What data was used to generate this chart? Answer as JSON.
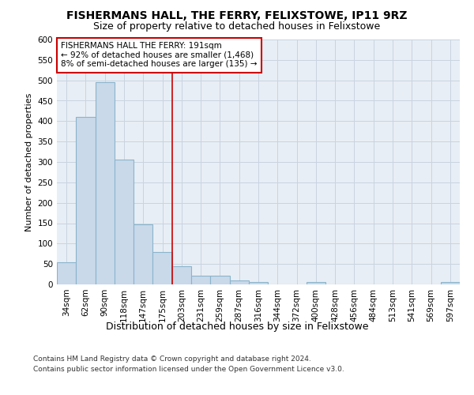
{
  "title1": "FISHERMANS HALL, THE FERRY, FELIXSTOWE, IP11 9RZ",
  "title2": "Size of property relative to detached houses in Felixstowe",
  "xlabel": "Distribution of detached houses by size in Felixstowe",
  "ylabel": "Number of detached properties",
  "categories": [
    "34sqm",
    "62sqm",
    "90sqm",
    "118sqm",
    "147sqm",
    "175sqm",
    "203sqm",
    "231sqm",
    "259sqm",
    "287sqm",
    "316sqm",
    "344sqm",
    "372sqm",
    "400sqm",
    "428sqm",
    "456sqm",
    "484sqm",
    "513sqm",
    "541sqm",
    "569sqm",
    "597sqm"
  ],
  "values": [
    55,
    410,
    495,
    305,
    148,
    80,
    45,
    22,
    22,
    10,
    5,
    0,
    0,
    5,
    0,
    0,
    0,
    0,
    0,
    0,
    5
  ],
  "bar_color": "#c9d9ea",
  "bar_edge_color": "#8ab4cc",
  "vline_x_idx": 6,
  "vline_color": "#cc0000",
  "annotation_text": "FISHERMANS HALL THE FERRY: 191sqm\n← 92% of detached houses are smaller (1,468)\n8% of semi-detached houses are larger (135) →",
  "annotation_box_color": "#ffffff",
  "annotation_box_edge": "#cc0000",
  "ylim": [
    0,
    600
  ],
  "yticks": [
    0,
    50,
    100,
    150,
    200,
    250,
    300,
    350,
    400,
    450,
    500,
    550,
    600
  ],
  "grid_color": "#c8d4e0",
  "background_color": "#e8eef5",
  "footer": "Contains HM Land Registry data © Crown copyright and database right 2024.\nContains public sector information licensed under the Open Government Licence v3.0.",
  "title1_fontsize": 10,
  "title2_fontsize": 9,
  "xlabel_fontsize": 9,
  "ylabel_fontsize": 8,
  "tick_fontsize": 7.5,
  "annotation_fontsize": 7.5,
  "footer_fontsize": 6.5
}
